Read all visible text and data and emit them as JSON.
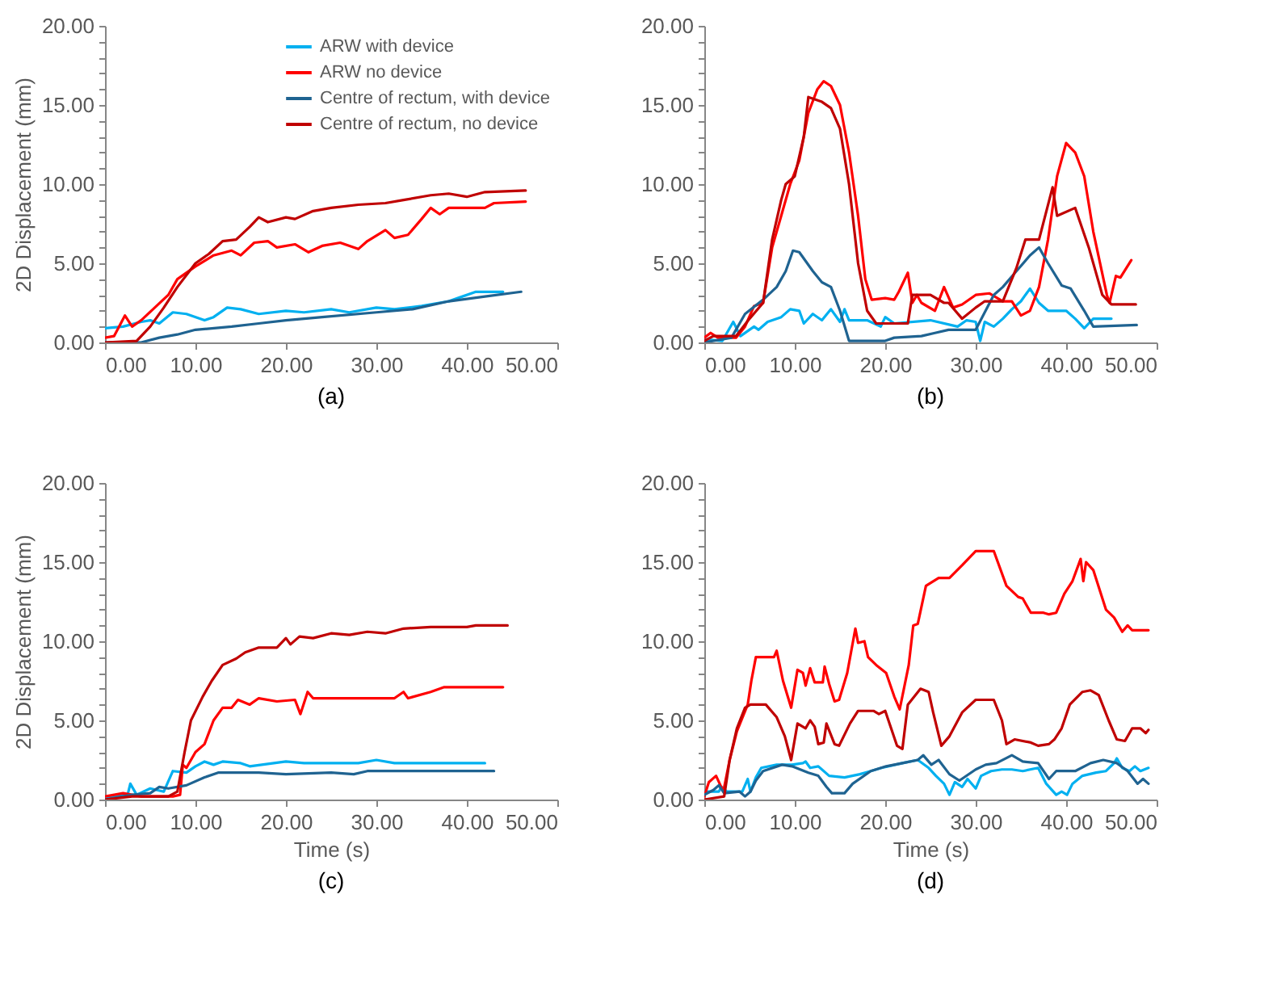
{
  "chart_data": [
    {
      "type": "line",
      "title": "(a)",
      "ylabel": "2D Displacement (mm)",
      "legend": "top right",
      "grid": false,
      "xlim": [
        0,
        50
      ],
      "ylim": [
        0,
        20
      ],
      "xticks": [
        {
          "value": 0,
          "label": "0.00"
        },
        {
          "value": 10,
          "label": "10.00"
        },
        {
          "value": 20,
          "label": "20.00"
        },
        {
          "value": 30,
          "label": "30.00"
        },
        {
          "value": 40,
          "label": "40.00"
        },
        {
          "value": 50,
          "label": "50.00"
        }
      ],
      "yticks": [
        {
          "value": 0,
          "label": "0.00"
        },
        {
          "value": 1,
          "label": null
        },
        {
          "value": 2,
          "label": null
        },
        {
          "value": 3,
          "label": null
        },
        {
          "value": 4,
          "label": null
        },
        {
          "value": 5,
          "label": "5.00"
        },
        {
          "value": 6,
          "label": null
        },
        {
          "value": 7,
          "label": null
        },
        {
          "value": 8,
          "label": null
        },
        {
          "value": 9,
          "label": null
        },
        {
          "value": 10,
          "label": "10.00"
        },
        {
          "value": 11,
          "label": null
        },
        {
          "value": 12,
          "label": null
        },
        {
          "value": 13,
          "label": null
        },
        {
          "value": 14,
          "label": null
        },
        {
          "value": 15,
          "label": "15.00"
        },
        {
          "value": 16,
          "label": null
        },
        {
          "value": 17,
          "label": null
        },
        {
          "value": 18,
          "label": null
        },
        {
          "value": 19,
          "label": null
        },
        {
          "value": 20,
          "label": "20.00"
        }
      ],
      "series": [
        {
          "name": "ARW with device",
          "color": "#00b0f0",
          "x": [
            0,
            2,
            4,
            5,
            6,
            7.5,
            9,
            11,
            12,
            13.5,
            15,
            17,
            20,
            22,
            25,
            27,
            30,
            32,
            35,
            38,
            39,
            41,
            44
          ],
          "values": [
            0.9,
            1.0,
            1.3,
            1.4,
            1.2,
            1.9,
            1.8,
            1.4,
            1.6,
            2.2,
            2.1,
            1.8,
            2.0,
            1.9,
            2.1,
            1.9,
            2.2,
            2.1,
            2.3,
            2.6,
            2.8,
            3.2,
            3.2
          ]
        },
        {
          "name": "ARW no device",
          "color": "#ff0000",
          "x": [
            0,
            1,
            2.2,
            3,
            4,
            5.5,
            7,
            8,
            10,
            12,
            14,
            15,
            16.5,
            18,
            19,
            21,
            22.5,
            24,
            26,
            28,
            29,
            31,
            32,
            33.5,
            35,
            36,
            37,
            38,
            42,
            43,
            46.5
          ],
          "values": [
            0.3,
            0.4,
            1.7,
            1.0,
            1.4,
            2.2,
            3.0,
            4.0,
            4.8,
            5.5,
            5.8,
            5.5,
            6.3,
            6.4,
            6.0,
            6.2,
            5.7,
            6.1,
            6.3,
            5.9,
            6.4,
            7.1,
            6.6,
            6.8,
            7.8,
            8.5,
            8.1,
            8.5,
            8.5,
            8.8,
            8.9
          ]
        },
        {
          "name": "Centre of rectum, with device",
          "color": "#1f6391",
          "x": [
            0,
            4,
            6,
            8,
            10,
            14,
            17,
            20,
            24,
            30,
            34,
            38,
            42,
            46
          ],
          "values": [
            0,
            0,
            0.3,
            0.5,
            0.8,
            1.0,
            1.2,
            1.4,
            1.6,
            1.9,
            2.1,
            2.6,
            2.9,
            3.2
          ]
        },
        {
          "name": "Centre of rectum, no device",
          "color": "#c00000",
          "x": [
            0,
            3.5,
            5,
            6.5,
            8,
            10,
            11.5,
            13,
            14.5,
            16,
            17,
            18,
            20,
            21,
            23,
            25,
            28,
            31,
            33,
            36,
            38,
            40,
            42,
            46.5
          ],
          "values": [
            0,
            0.1,
            1.0,
            2.2,
            3.5,
            5.0,
            5.6,
            6.4,
            6.5,
            7.3,
            7.9,
            7.6,
            7.9,
            7.8,
            8.3,
            8.5,
            8.7,
            8.8,
            9.0,
            9.3,
            9.4,
            9.2,
            9.5,
            9.6
          ]
        }
      ]
    },
    {
      "type": "line",
      "title": "(b)",
      "grid": false,
      "xlim": [
        0,
        50
      ],
      "ylim": [
        0,
        20
      ],
      "xticks": [
        {
          "value": 0,
          "label": "0.00"
        },
        {
          "value": 10,
          "label": "10.00"
        },
        {
          "value": 20,
          "label": "20.00"
        },
        {
          "value": 30,
          "label": "30.00"
        },
        {
          "value": 40,
          "label": "40.00"
        },
        {
          "value": 50,
          "label": "50.00"
        }
      ],
      "yticks": [
        {
          "value": 0,
          "label": "0.00"
        },
        {
          "value": 1,
          "label": null
        },
        {
          "value": 2,
          "label": null
        },
        {
          "value": 3,
          "label": null
        },
        {
          "value": 4,
          "label": null
        },
        {
          "value": 5,
          "label": "5.00"
        },
        {
          "value": 6,
          "label": null
        },
        {
          "value": 7,
          "label": null
        },
        {
          "value": 8,
          "label": null
        },
        {
          "value": 9,
          "label": null
        },
        {
          "value": 10,
          "label": "10.00"
        },
        {
          "value": 11,
          "label": null
        },
        {
          "value": 12,
          "label": null
        },
        {
          "value": 13,
          "label": null
        },
        {
          "value": 14,
          "label": null
        },
        {
          "value": 15,
          "label": "15.00"
        },
        {
          "value": 16,
          "label": null
        },
        {
          "value": 17,
          "label": null
        },
        {
          "value": 18,
          "label": null
        },
        {
          "value": 19,
          "label": null
        },
        {
          "value": 20,
          "label": "20.00"
        }
      ],
      "series": [
        {
          "color": "#00b0f0",
          "x": [
            0,
            2,
            3.2,
            4,
            5.5,
            6,
            7,
            8.5,
            9.5,
            10.5,
            11,
            12,
            13,
            14,
            15,
            15.5,
            16,
            18,
            19.5,
            20,
            21,
            25,
            28,
            29,
            30,
            30.5,
            31,
            32,
            33,
            34,
            35,
            36,
            37,
            38,
            40,
            41,
            42,
            43,
            45
          ],
          "values": [
            0.2,
            0.1,
            1.3,
            0.4,
            1.0,
            0.8,
            1.3,
            1.6,
            2.1,
            2.0,
            1.2,
            1.8,
            1.4,
            2.1,
            1.3,
            2.1,
            1.4,
            1.4,
            1.0,
            1.6,
            1.2,
            1.4,
            1.0,
            1.4,
            1.3,
            0.1,
            1.3,
            1.0,
            1.5,
            2.1,
            2.6,
            3.4,
            2.5,
            2.0,
            2.0,
            1.5,
            0.9,
            1.5,
            1.5
          ]
        },
        {
          "color": "#ff0000",
          "x": [
            0,
            0.7,
            1.5,
            3.5,
            4.5,
            5.5,
            6.5,
            7.5,
            8.5,
            9.5,
            10.5,
            11.5,
            12.5,
            13.2,
            14,
            15,
            16,
            17,
            17.8,
            18.5,
            20,
            21,
            21.5,
            22.5,
            23,
            23.5,
            24,
            25.5,
            26.5,
            27.5,
            28.5,
            30,
            31.5,
            33,
            34,
            35,
            36,
            37,
            38,
            39,
            40,
            41,
            42,
            43,
            44.5,
            44.8,
            45.5,
            46,
            47.2
          ],
          "values": [
            0.3,
            0.6,
            0.3,
            0.3,
            1.0,
            2.3,
            2.5,
            6.0,
            8.0,
            10.0,
            11.5,
            14.5,
            16.0,
            16.5,
            16.2,
            15.0,
            12.0,
            8.0,
            4.0,
            2.7,
            2.8,
            2.7,
            3.2,
            4.4,
            2.5,
            3.0,
            2.5,
            2.0,
            3.5,
            2.2,
            2.4,
            3.0,
            3.1,
            2.6,
            2.6,
            1.7,
            2.0,
            3.5,
            6.5,
            10.5,
            12.6,
            12.0,
            10.5,
            7.0,
            3.0,
            2.5,
            4.2,
            4.1,
            5.2
          ]
        },
        {
          "color": "#1f6391",
          "x": [
            0,
            3,
            4.5,
            6.5,
            8,
            9,
            9.8,
            10.5,
            12,
            13,
            14,
            15,
            16,
            20,
            21,
            24,
            25.5,
            27,
            30,
            32,
            33,
            34.5,
            36,
            37,
            38,
            39.5,
            40.5,
            42,
            43,
            47.8
          ],
          "values": [
            0,
            0.3,
            1.8,
            2.7,
            3.5,
            4.5,
            5.8,
            5.7,
            4.5,
            3.8,
            3.5,
            2.0,
            0.1,
            0.1,
            0.3,
            0.4,
            0.6,
            0.8,
            0.8,
            3.0,
            3.5,
            4.5,
            5.5,
            6.0,
            5.0,
            3.6,
            3.4,
            2.0,
            1.0,
            1.1
          ]
        },
        {
          "color": "#c00000",
          "x": [
            0,
            1,
            3.5,
            5,
            6.5,
            7.5,
            8.5,
            9,
            10,
            11,
            11.5,
            13,
            14,
            15,
            16,
            17,
            18,
            19,
            22.5,
            23,
            25,
            26.5,
            27,
            28.5,
            30,
            31,
            33,
            34.5,
            35.5,
            37,
            38.5,
            39,
            41,
            42.5,
            44,
            45,
            47.7
          ],
          "values": [
            0.1,
            0.4,
            0.4,
            1.5,
            2.5,
            6.5,
            9.0,
            10.0,
            10.5,
            13.0,
            15.5,
            15.2,
            14.8,
            13.5,
            10.0,
            5.0,
            2.0,
            1.2,
            1.2,
            3.0,
            3.0,
            2.5,
            2.5,
            1.5,
            2.2,
            2.6,
            2.6,
            4.7,
            6.5,
            6.5,
            9.8,
            8.0,
            8.5,
            6.0,
            3.0,
            2.4,
            2.4
          ]
        }
      ]
    },
    {
      "type": "line",
      "title": "(c)",
      "xlabel": "Time (s)",
      "ylabel": "2D Displacement (mm)",
      "grid": false,
      "xlim": [
        0,
        50
      ],
      "ylim": [
        0,
        20
      ],
      "xticks": [
        {
          "value": 0,
          "label": "0.00"
        },
        {
          "value": 10,
          "label": "10.00"
        },
        {
          "value": 20,
          "label": "20.00"
        },
        {
          "value": 30,
          "label": "30.00"
        },
        {
          "value": 40,
          "label": "40.00"
        },
        {
          "value": 50,
          "label": "50.00"
        }
      ],
      "yticks": [
        {
          "value": 0,
          "label": "0.00"
        },
        {
          "value": 1,
          "label": null
        },
        {
          "value": 2,
          "label": null
        },
        {
          "value": 3,
          "label": null
        },
        {
          "value": 4,
          "label": null
        },
        {
          "value": 5,
          "label": "5.00"
        },
        {
          "value": 6,
          "label": null
        },
        {
          "value": 7,
          "label": null
        },
        {
          "value": 8,
          "label": null
        },
        {
          "value": 9,
          "label": null
        },
        {
          "value": 10,
          "label": "10.00"
        },
        {
          "value": 11,
          "label": null
        },
        {
          "value": 12,
          "label": null
        },
        {
          "value": 13,
          "label": null
        },
        {
          "value": 14,
          "label": null
        },
        {
          "value": 15,
          "label": "15.00"
        },
        {
          "value": 16,
          "label": null
        },
        {
          "value": 17,
          "label": null
        },
        {
          "value": 18,
          "label": null
        },
        {
          "value": 19,
          "label": null
        },
        {
          "value": 20,
          "label": "20.00"
        }
      ],
      "series": [
        {
          "color": "#00b0f0",
          "x": [
            0,
            2.5,
            2.8,
            3.5,
            5,
            6.5,
            7.5,
            9,
            10,
            11,
            12,
            13,
            15,
            16,
            20,
            22,
            28,
            30,
            32,
            42
          ],
          "values": [
            0.1,
            0.3,
            1.0,
            0.3,
            0.7,
            0.5,
            1.8,
            1.7,
            2.1,
            2.4,
            2.2,
            2.4,
            2.3,
            2.1,
            2.4,
            2.3,
            2.3,
            2.5,
            2.3,
            2.3
          ]
        },
        {
          "color": "#ff0000",
          "x": [
            0,
            2,
            4,
            7.5,
            8.3,
            8.6,
            9,
            10,
            11,
            12,
            13,
            14,
            14.7,
            16,
            17,
            19,
            21,
            21.6,
            22.4,
            23,
            32,
            33,
            33.5,
            36,
            37.5,
            44
          ],
          "values": [
            0.2,
            0.4,
            0.2,
            0.2,
            0.3,
            2.2,
            2.0,
            3.0,
            3.5,
            5.0,
            5.8,
            5.8,
            6.3,
            6.0,
            6.4,
            6.2,
            6.3,
            5.4,
            6.8,
            6.4,
            6.4,
            6.8,
            6.4,
            6.8,
            7.1,
            7.1
          ]
        },
        {
          "color": "#1f6391",
          "x": [
            0,
            3,
            5,
            6,
            7,
            9,
            11,
            12.5,
            17,
            20,
            25,
            27.5,
            29,
            43
          ],
          "values": [
            0,
            0.3,
            0.4,
            0.8,
            0.7,
            0.9,
            1.4,
            1.7,
            1.7,
            1.6,
            1.7,
            1.6,
            1.8,
            1.8
          ]
        },
        {
          "color": "#c00000",
          "x": [
            0,
            3,
            7,
            8,
            8.8,
            9.5,
            10.8,
            11.8,
            13,
            14.5,
            15.5,
            17,
            19,
            20,
            20.5,
            21.5,
            23,
            25,
            27,
            29,
            31,
            33,
            36,
            40,
            41,
            44.5
          ],
          "values": [
            0,
            0.2,
            0.2,
            0.5,
            3.0,
            5.0,
            6.5,
            7.5,
            8.5,
            8.9,
            9.3,
            9.6,
            9.6,
            10.2,
            9.8,
            10.3,
            10.2,
            10.5,
            10.4,
            10.6,
            10.5,
            10.8,
            10.9,
            10.9,
            11.0,
            11.0
          ]
        }
      ]
    },
    {
      "type": "line",
      "title": "(d)",
      "xlabel": "Time (s)",
      "grid": false,
      "xlim": [
        0,
        50
      ],
      "ylim": [
        0,
        20
      ],
      "xticks": [
        {
          "value": 0,
          "label": "0.00"
        },
        {
          "value": 10,
          "label": "10.00"
        },
        {
          "value": 20,
          "label": "20.00"
        },
        {
          "value": 30,
          "label": "30.00"
        },
        {
          "value": 40,
          "label": "40.00"
        },
        {
          "value": 50,
          "label": "50.00"
        }
      ],
      "yticks": [
        {
          "value": 0,
          "label": "0.00"
        },
        {
          "value": 1,
          "label": null
        },
        {
          "value": 2,
          "label": null
        },
        {
          "value": 3,
          "label": null
        },
        {
          "value": 4,
          "label": null
        },
        {
          "value": 5,
          "label": "5.00"
        },
        {
          "value": 6,
          "label": null
        },
        {
          "value": 7,
          "label": null
        },
        {
          "value": 8,
          "label": null
        },
        {
          "value": 9,
          "label": null
        },
        {
          "value": 10,
          "label": "10.00"
        },
        {
          "value": 11,
          "label": null
        },
        {
          "value": 12,
          "label": null
        },
        {
          "value": 13,
          "label": null
        },
        {
          "value": 14,
          "label": null
        },
        {
          "value": 15,
          "label": "15.00"
        },
        {
          "value": 16,
          "label": null
        },
        {
          "value": 17,
          "label": null
        },
        {
          "value": 18,
          "label": null
        },
        {
          "value": 19,
          "label": null
        },
        {
          "value": 20,
          "label": "20.00"
        }
      ],
      "series": [
        {
          "color": "#00b0f0",
          "x": [
            0,
            1.6,
            1.9,
            2.5,
            4.2,
            4.8,
            5.1,
            5.7,
            6.3,
            8,
            9.7,
            10.9,
            11.2,
            11.7,
            12.6,
            13.8,
            15.5,
            17.2,
            18.4,
            19.6,
            21.9,
            23.6,
            24.8,
            25.6,
            26.5,
            27.1,
            27.7,
            28.5,
            29.1,
            30,
            30.6,
            31.7,
            32.9,
            34,
            35.2,
            36.9,
            37.8,
            38.9,
            39.5,
            40.1,
            40.7,
            41.8,
            43.3,
            44.4,
            45.3,
            45.6,
            46.2,
            47,
            47.6,
            48.2,
            49.1
          ],
          "values": [
            0.5,
            0.5,
            0.8,
            0.5,
            0.5,
            1.3,
            0.5,
            1.4,
            2.0,
            2.2,
            2.2,
            2.3,
            2.4,
            2.0,
            2.1,
            1.5,
            1.4,
            1.6,
            1.8,
            2.0,
            2.3,
            2.5,
            2.0,
            1.5,
            1.0,
            0.3,
            1.1,
            0.8,
            1.3,
            0.7,
            1.5,
            1.8,
            1.9,
            1.9,
            1.8,
            2.0,
            1.0,
            0.3,
            0.5,
            0.3,
            1.0,
            1.5,
            1.7,
            1.8,
            2.3,
            2.6,
            2.0,
            1.8,
            2.1,
            1.8,
            2.0
          ]
        },
        {
          "color": "#ff0000",
          "x": [
            0,
            0.5,
            1.3,
            2.1,
            2.8,
            3.6,
            4.8,
            5.2,
            5.7,
            7.7,
            8.0,
            8.7,
            9.6,
            10.3,
            10.9,
            11.2,
            11.7,
            12.2,
            13.1,
            13.3,
            13.8,
            14.4,
            14.9,
            15.8,
            16.7,
            17,
            17.7,
            18.1,
            19,
            20.1,
            21,
            21.6,
            22.6,
            23.1,
            23.6,
            24.5,
            25.9,
            27.1,
            28.5,
            30,
            32,
            33.4,
            34.7,
            35.2,
            36.1,
            37.5,
            38.1,
            38.9,
            39.8,
            40.7,
            41.6,
            41.9,
            42.2,
            43,
            44.4,
            45.3,
            46.2,
            46.8,
            47.3,
            49.1
          ],
          "values": [
            0.2,
            1.1,
            1.5,
            0.5,
            2.5,
            4.3,
            6.0,
            7.5,
            9.0,
            9.0,
            9.4,
            7.5,
            5.8,
            8.2,
            8.0,
            7.2,
            8.3,
            7.4,
            7.4,
            8.4,
            7.3,
            6.2,
            6.3,
            8.0,
            10.8,
            9.9,
            10.0,
            9.0,
            8.5,
            8.0,
            6.5,
            5.7,
            8.5,
            11.0,
            11.1,
            13.5,
            14.0,
            14.0,
            14.8,
            15.7,
            15.7,
            13.5,
            12.8,
            12.7,
            11.8,
            11.8,
            11.7,
            11.8,
            13.0,
            13.8,
            15.2,
            13.8,
            15.0,
            14.5,
            12.0,
            11.5,
            10.6,
            11.0,
            10.7,
            10.7
          ]
        },
        {
          "color": "#1f6391",
          "x": [
            0,
            1,
            1.6,
            2.2,
            3.9,
            4.5,
            5.1,
            5.7,
            6.5,
            8.6,
            9.7,
            11.5,
            12.6,
            13.5,
            14.1,
            15.5,
            16.4,
            18.4,
            20.1,
            21.9,
            23.6,
            24.2,
            25.1,
            25.9,
            27.1,
            28.2,
            30,
            31.1,
            32.3,
            34,
            35.2,
            36.9,
            38.1,
            38.9,
            41,
            42.7,
            44.1,
            45.6,
            46.8,
            47.9,
            48.5,
            49.1
          ],
          "values": [
            0.3,
            0.6,
            0.9,
            0.4,
            0.5,
            0.2,
            0.5,
            1.2,
            1.8,
            2.2,
            2.1,
            1.7,
            1.5,
            0.8,
            0.4,
            0.4,
            1.0,
            1.8,
            2.1,
            2.3,
            2.5,
            2.8,
            2.2,
            2.5,
            1.6,
            1.2,
            1.9,
            2.2,
            2.3,
            2.8,
            2.4,
            2.3,
            1.3,
            1.8,
            1.8,
            2.3,
            2.5,
            2.3,
            1.8,
            1.0,
            1.3,
            1.0
          ]
        },
        {
          "color": "#c00000",
          "x": [
            0,
            2.2,
            2.8,
            3.6,
            4.5,
            5.1,
            6.8,
            8,
            8.9,
            9.6,
            10.3,
            11.2,
            11.7,
            12.2,
            12.6,
            13.2,
            13.5,
            14.4,
            14.9,
            16.1,
            17,
            18.7,
            19.3,
            20,
            21.3,
            21.9,
            22.5,
            23.9,
            24.8,
            25.3,
            26.2,
            27.1,
            28.5,
            30,
            32,
            32.9,
            33.4,
            34.3,
            36.1,
            36.9,
            38.1,
            38.7,
            39.5,
            40.4,
            41.8,
            42.7,
            43.6,
            44.7,
            45.6,
            46.5,
            47.3,
            48.2,
            48.8,
            49.1
          ],
          "values": [
            0,
            0.2,
            2.5,
            4.5,
            5.8,
            6.0,
            6.0,
            5.2,
            4.0,
            2.5,
            4.8,
            4.5,
            5.0,
            4.6,
            3.5,
            3.6,
            4.8,
            3.5,
            3.4,
            4.8,
            5.6,
            5.6,
            5.4,
            5.6,
            3.4,
            3.2,
            6.0,
            7.0,
            6.8,
            5.5,
            3.4,
            4.0,
            5.5,
            6.3,
            6.3,
            5.0,
            3.5,
            3.8,
            3.6,
            3.4,
            3.5,
            3.8,
            4.5,
            6.0,
            6.8,
            6.9,
            6.6,
            5.0,
            3.8,
            3.7,
            4.5,
            4.5,
            4.2,
            4.4
          ]
        }
      ]
    }
  ]
}
